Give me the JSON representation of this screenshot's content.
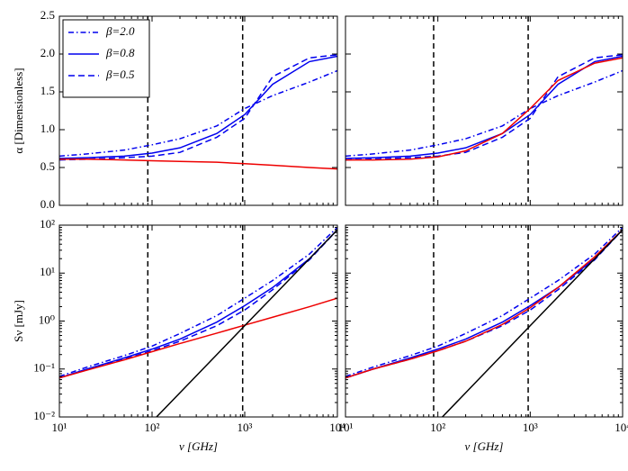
{
  "chart_data": [
    {
      "type": "line",
      "xlog": true,
      "ylog": false,
      "xlim": [
        10,
        10000
      ],
      "ylim": [
        0,
        2.5
      ],
      "xticks": [
        10,
        100,
        1000,
        10000
      ],
      "show_xtick_labels": false,
      "yticks": [
        {
          "value": 0,
          "label": "0.0"
        },
        {
          "value": 0.5,
          "label": "0.5"
        },
        {
          "value": 1,
          "label": "1.0"
        },
        {
          "value": 1.5,
          "label": "1.5"
        },
        {
          "value": 2,
          "label": "2.0"
        },
        {
          "value": 2.5,
          "label": "2.5"
        }
      ],
      "ylabel": "α [Dimensionless]",
      "legend": "upper left",
      "vlines": [
        90,
        950
      ],
      "x": [
        10,
        20,
        50,
        100,
        200,
        500,
        1000,
        2000,
        5000,
        10000
      ],
      "series": [
        {
          "name": "β=2.0",
          "color": "#0000ee",
          "dash": "dashdot",
          "values": [
            0.65,
            0.68,
            0.73,
            0.8,
            0.88,
            1.05,
            1.28,
            1.45,
            1.63,
            1.78
          ]
        },
        {
          "name": "β=0.8",
          "color": "#0000ee",
          "dash": "solid",
          "values": [
            0.62,
            0.63,
            0.65,
            0.69,
            0.76,
            0.95,
            1.2,
            1.6,
            1.9,
            1.97
          ]
        },
        {
          "name": "β=0.5",
          "color": "#0000ee",
          "dash": "dashed",
          "values": [
            0.6,
            0.61,
            0.63,
            0.65,
            0.7,
            0.9,
            1.15,
            1.7,
            1.95,
            1.99
          ]
        },
        {
          "color": "#ee0000",
          "dash": "solid",
          "values": [
            0.61,
            0.61,
            0.6,
            0.59,
            0.58,
            0.57,
            0.55,
            0.53,
            0.5,
            0.48
          ]
        }
      ]
    },
    {
      "type": "line",
      "xlog": true,
      "ylog": false,
      "xlim": [
        10,
        10000
      ],
      "ylim": [
        0,
        2.5
      ],
      "xticks": [
        10,
        100,
        1000,
        10000
      ],
      "show_xtick_labels": false,
      "yticks": [
        0,
        0.5,
        1,
        1.5,
        2,
        2.5
      ],
      "show_ytick_labels": false,
      "vlines": [
        90,
        950
      ],
      "x": [
        10,
        20,
        50,
        100,
        200,
        500,
        1000,
        2000,
        5000,
        10000
      ],
      "series": [
        {
          "color": "#0000ee",
          "dash": "dashdot",
          "values": [
            0.65,
            0.68,
            0.73,
            0.8,
            0.88,
            1.05,
            1.28,
            1.45,
            1.63,
            1.78
          ]
        },
        {
          "color": "#0000ee",
          "dash": "solid",
          "values": [
            0.62,
            0.63,
            0.65,
            0.69,
            0.76,
            0.95,
            1.2,
            1.6,
            1.9,
            1.97
          ]
        },
        {
          "color": "#0000ee",
          "dash": "dashed",
          "values": [
            0.6,
            0.61,
            0.63,
            0.65,
            0.7,
            0.9,
            1.15,
            1.7,
            1.95,
            1.99
          ]
        },
        {
          "color": "#ee0000",
          "dash": "solid",
          "values": [
            0.6,
            0.6,
            0.61,
            0.64,
            0.72,
            0.95,
            1.28,
            1.65,
            1.88,
            1.95
          ]
        }
      ]
    },
    {
      "type": "line",
      "xlog": true,
      "ylog": true,
      "xlim": [
        10,
        10000
      ],
      "ylim": [
        0.01,
        100
      ],
      "xticks": [
        {
          "value": 10,
          "label": "10¹"
        },
        {
          "value": 100,
          "label": "10²"
        },
        {
          "value": 1000,
          "label": "10³"
        },
        {
          "value": 10000,
          "label": "10⁴"
        }
      ],
      "yticks": [
        {
          "value": 0.01,
          "label": "10⁻²"
        },
        {
          "value": 0.1,
          "label": "10⁻¹"
        },
        {
          "value": 1,
          "label": "10⁰"
        },
        {
          "value": 10,
          "label": "10¹"
        },
        {
          "value": 100,
          "label": "10²"
        }
      ],
      "xlabel": "ν [GHz]",
      "ylabel": "Sν [mJy]",
      "vlines": [
        90,
        950
      ],
      "x": [
        10,
        20,
        50,
        100,
        200,
        500,
        1000,
        2000,
        5000,
        10000
      ],
      "series": [
        {
          "color": "#0000ee",
          "dash": "dashdot",
          "values": [
            0.07,
            0.11,
            0.19,
            0.3,
            0.55,
            1.3,
            3,
            7,
            25,
            90
          ]
        },
        {
          "color": "#0000ee",
          "dash": "solid",
          "values": [
            0.065,
            0.1,
            0.17,
            0.26,
            0.42,
            0.95,
            2.1,
            5,
            20,
            80
          ]
        },
        {
          "color": "#0000ee",
          "dash": "dashed",
          "values": [
            0.065,
            0.1,
            0.16,
            0.24,
            0.38,
            0.8,
            1.7,
            4.5,
            19,
            80
          ]
        },
        {
          "color": "#ee0000",
          "dash": "solid",
          "values": [
            0.065,
            0.095,
            0.155,
            0.23,
            0.34,
            0.56,
            0.82,
            1.2,
            1.99,
            3
          ]
        },
        {
          "color": "#000000",
          "dash": "solid",
          "values": [
            null,
            null,
            null,
            0.008,
            0.032,
            0.2,
            0.8,
            3.2,
            20,
            80
          ]
        }
      ]
    },
    {
      "type": "line",
      "xlog": true,
      "ylog": true,
      "xlim": [
        10,
        10000
      ],
      "ylim": [
        0.01,
        100
      ],
      "xticks": [
        {
          "value": 10,
          "label": "10¹"
        },
        {
          "value": 100,
          "label": "10²"
        },
        {
          "value": 1000,
          "label": "10³"
        },
        {
          "value": 10000,
          "label": "10⁴"
        }
      ],
      "yticks": [
        0.01,
        0.1,
        1,
        10,
        100
      ],
      "show_ytick_labels": false,
      "xlabel": "ν [GHz]",
      "vlines": [
        90,
        950
      ],
      "x": [
        10,
        20,
        50,
        100,
        200,
        500,
        1000,
        2000,
        5000,
        10000
      ],
      "series": [
        {
          "color": "#0000ee",
          "dash": "dashdot",
          "values": [
            0.07,
            0.11,
            0.19,
            0.3,
            0.55,
            1.3,
            3,
            7,
            25,
            90
          ]
        },
        {
          "color": "#0000ee",
          "dash": "solid",
          "values": [
            0.065,
            0.1,
            0.17,
            0.26,
            0.42,
            0.95,
            2.1,
            5,
            20,
            80
          ]
        },
        {
          "color": "#0000ee",
          "dash": "dashed",
          "values": [
            0.065,
            0.1,
            0.16,
            0.24,
            0.38,
            0.8,
            1.7,
            4.5,
            19,
            80
          ]
        },
        {
          "color": "#ee0000",
          "dash": "solid",
          "values": [
            0.065,
            0.1,
            0.16,
            0.24,
            0.38,
            0.85,
            1.9,
            5,
            22,
            80
          ]
        },
        {
          "color": "#000000",
          "dash": "solid",
          "values": [
            null,
            null,
            null,
            0.008,
            0.032,
            0.2,
            0.8,
            3.2,
            20,
            80
          ]
        }
      ]
    }
  ]
}
